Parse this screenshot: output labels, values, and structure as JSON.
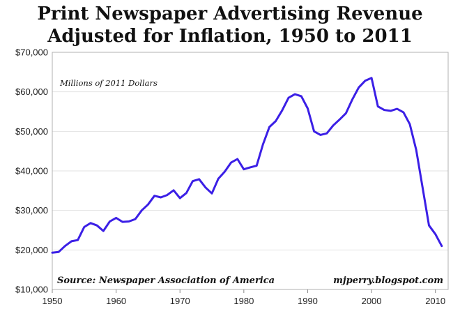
{
  "chart_data": {
    "type": "line",
    "title": "Print Newspaper Advertising Revenue",
    "subtitle": "Adjusted for Inflation, 1950 to 2011",
    "ylabel": "Millions of 2011 Dollars",
    "xlabel": "",
    "xlim": [
      1950,
      2012
    ],
    "ylim": [
      10000,
      70000
    ],
    "grid": true,
    "x_ticks": [
      1950,
      1960,
      1970,
      1980,
      1990,
      2000,
      2010
    ],
    "x_tick_labels": [
      "1950",
      "1960",
      "1970",
      "1980",
      "1990",
      "2000",
      "2010"
    ],
    "y_ticks": [
      10000,
      20000,
      30000,
      40000,
      50000,
      60000,
      70000
    ],
    "y_tick_labels": [
      "$10,000",
      "$20,000",
      "$30,000",
      "$40,000",
      "$50,000",
      "$60,000",
      "$70,000"
    ],
    "series": [
      {
        "color": "#3b1fe6",
        "x": [
          1950,
          1951,
          1952,
          1953,
          1954,
          1955,
          1956,
          1957,
          1958,
          1959,
          1960,
          1961,
          1962,
          1963,
          1964,
          1965,
          1966,
          1967,
          1968,
          1969,
          1970,
          1971,
          1972,
          1973,
          1974,
          1975,
          1976,
          1977,
          1978,
          1979,
          1980,
          1981,
          1982,
          1983,
          1984,
          1985,
          1986,
          1987,
          1988,
          1989,
          1990,
          1991,
          1992,
          1993,
          1994,
          1995,
          1996,
          1997,
          1998,
          1999,
          2000,
          2001,
          2002,
          2003,
          2004,
          2005,
          2006,
          2007,
          2008,
          2009,
          2010,
          2011
        ],
        "y": [
          19300,
          19500,
          21000,
          22200,
          22500,
          25800,
          26800,
          26200,
          24800,
          27200,
          28100,
          27100,
          27200,
          27800,
          30000,
          31500,
          33700,
          33300,
          33900,
          35100,
          33100,
          34400,
          37400,
          37900,
          35800,
          34300,
          38000,
          39800,
          42100,
          43000,
          40400,
          40900,
          41300,
          46700,
          51100,
          52600,
          55300,
          58500,
          59400,
          58900,
          55800,
          50000,
          49100,
          49500,
          51500,
          53000,
          54600,
          58100,
          61100,
          62800,
          63500,
          56300,
          55400,
          55200,
          55700,
          54800,
          51800,
          45300,
          35700,
          26200,
          24000,
          21000
        ]
      }
    ],
    "annotations": [
      "Millions of 2011 Dollars",
      "Source: Newspaper Association of America",
      "mjperry.blogspot.com"
    ]
  }
}
